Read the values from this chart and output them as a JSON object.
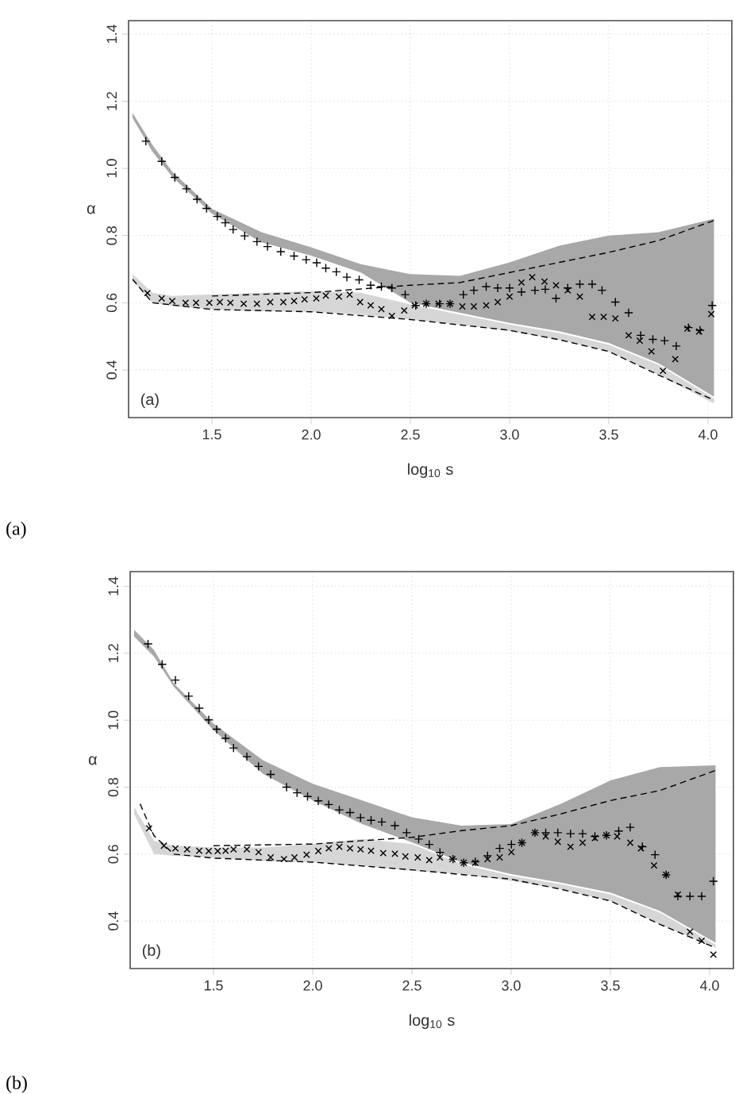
{
  "chart_data": [
    {
      "type": "scatter",
      "xlabel": "log$_{10}$ s",
      "ylabel": "α",
      "xlim": [
        1.08,
        4.12
      ],
      "ylim": [
        0.258,
        1.44
      ],
      "grid": true,
      "xticks": [
        1.5,
        {
          "value": 2.0,
          "label": "2.0"
        },
        2.5,
        {
          "value": 3.0,
          "label": "3.0"
        },
        3.5,
        {
          "value": 4.0,
          "label": "4.0"
        }
      ],
      "yticks": [
        0.4,
        0.6,
        0.8,
        {
          "value": 1.0,
          "label": "1.0"
        },
        1.2,
        1.4
      ],
      "annotations": [
        "(a)",
        "(a)"
      ],
      "series": [
        {
          "type": "area",
          "color": "#a8a8a8",
          "x": [
            1.1,
            1.2,
            1.3,
            1.5,
            1.75,
            2.0,
            2.25,
            2.5,
            2.75,
            3.0,
            3.25,
            3.5,
            3.75,
            4.03
          ],
          "values": [
            null,
            null,
            null,
            null,
            null,
            null,
            null,
            null,
            null,
            null,
            null,
            null,
            null,
            null
          ],
          "upper": [
            1.165,
            1.07,
            0.99,
            0.88,
            0.81,
            0.765,
            0.715,
            0.685,
            0.68,
            0.72,
            0.77,
            0.8,
            0.81,
            0.85
          ],
          "lower": [
            1.15,
            1.05,
            0.975,
            0.865,
            0.78,
            0.74,
            0.69,
            0.6,
            0.57,
            0.54,
            0.515,
            0.48,
            0.42,
            0.32
          ]
        },
        {
          "type": "area",
          "color": "#d6d6d6",
          "x": [
            1.1,
            1.2,
            1.3,
            1.5,
            1.75,
            2.0,
            2.25,
            2.5,
            2.75,
            3.0,
            3.25,
            3.5,
            3.75,
            4.03
          ],
          "values": [
            null,
            null,
            null,
            null,
            null,
            null,
            null,
            null,
            null,
            null,
            null,
            null,
            null,
            null
          ],
          "upper": [
            0.685,
            0.63,
            0.62,
            0.625,
            0.63,
            0.635,
            0.63,
            0.595,
            0.565,
            0.535,
            0.51,
            0.475,
            0.415,
            0.315
          ],
          "lower": [
            0.665,
            0.6,
            0.59,
            0.58,
            0.575,
            0.573,
            0.565,
            0.55,
            0.535,
            0.515,
            0.49,
            0.455,
            0.385,
            0.3
          ]
        },
        {
          "type": "line",
          "line_style": "dashed",
          "color": "#000000",
          "x": [
            1.5,
            2.0,
            2.5,
            2.75,
            3.0,
            3.25,
            3.5,
            3.75,
            4.03
          ],
          "values": [
            0.62,
            0.63,
            0.652,
            0.66,
            0.69,
            0.72,
            0.75,
            0.785,
            0.845
          ]
        },
        {
          "type": "line",
          "line_style": "dashed",
          "color": "#000000",
          "x": [
            1.1,
            1.2,
            1.5,
            2.0,
            2.5,
            3.0,
            3.25,
            3.5,
            3.75,
            4.03
          ],
          "values": [
            0.67,
            0.6,
            0.58,
            0.573,
            0.55,
            0.518,
            0.49,
            0.455,
            0.385,
            0.31
          ]
        },
        {
          "type": "scatter",
          "marker": "plus",
          "color": "#000000",
          "x": [
            1.167,
            1.247,
            1.313,
            1.372,
            1.425,
            1.473,
            1.527,
            1.567,
            1.607,
            1.665,
            1.727,
            1.78,
            1.847,
            1.914,
            1.975,
            2.028,
            2.074,
            2.127,
            2.18,
            2.242,
            2.3,
            2.354,
            2.407,
            2.474,
            2.527,
            2.58,
            2.647,
            2.7,
            2.767,
            2.82,
            2.882,
            2.94,
            3.0,
            3.06,
            3.128,
            3.18,
            3.234,
            3.293,
            3.354,
            3.416,
            3.466,
            3.533,
            3.6,
            3.661,
            3.722,
            3.781,
            3.84,
            3.901,
            3.96,
            4.021
          ],
          "values": [
            1.081,
            1.021,
            0.973,
            0.939,
            0.908,
            0.881,
            0.857,
            0.838,
            0.818,
            0.799,
            0.782,
            0.767,
            0.752,
            0.739,
            0.728,
            0.719,
            0.703,
            0.692,
            0.676,
            0.668,
            0.652,
            0.648,
            0.644,
            0.624,
            0.592,
            0.597,
            0.597,
            0.597,
            0.624,
            0.637,
            0.648,
            0.644,
            0.644,
            0.632,
            0.637,
            0.64,
            0.613,
            0.644,
            0.655,
            0.655,
            0.637,
            0.602,
            0.57,
            0.503,
            0.491,
            0.487,
            0.471,
            0.526,
            0.518,
            0.592
          ]
        },
        {
          "type": "scatter",
          "marker": "cross",
          "color": "#000000",
          "x": [
            1.175,
            1.247,
            1.3,
            1.367,
            1.42,
            1.487,
            1.54,
            1.593,
            1.66,
            1.727,
            1.794,
            1.86,
            1.914,
            1.967,
            2.026,
            2.074,
            2.14,
            2.194,
            2.247,
            2.3,
            2.354,
            2.407,
            2.469,
            2.522,
            2.58,
            2.642,
            2.7,
            2.762,
            2.82,
            2.882,
            2.94,
            3.0,
            3.06,
            3.114,
            3.176,
            3.234,
            3.293,
            3.354,
            3.416,
            3.474,
            3.533,
            3.6,
            3.656,
            3.715,
            3.773,
            3.835,
            3.896,
            3.955,
            4.016
          ],
          "values": [
            0.629,
            0.613,
            0.605,
            0.6,
            0.6,
            0.6,
            0.602,
            0.6,
            0.597,
            0.597,
            0.602,
            0.602,
            0.605,
            0.61,
            0.613,
            0.621,
            0.618,
            0.624,
            0.602,
            0.592,
            0.581,
            0.561,
            0.577,
            0.592,
            0.597,
            0.597,
            0.597,
            0.589,
            0.589,
            0.592,
            0.602,
            0.618,
            0.66,
            0.676,
            0.663,
            0.652,
            0.637,
            0.618,
            0.558,
            0.558,
            0.553,
            0.503,
            0.487,
            0.455,
            0.397,
            0.432,
            0.523,
            0.514,
            0.566
          ]
        }
      ]
    },
    {
      "type": "scatter",
      "xlabel": "log$_{10}$ s",
      "ylabel": "α",
      "xlim": [
        1.08,
        4.12
      ],
      "ylim": [
        0.258,
        1.444
      ],
      "grid": true,
      "xticks": [
        1.5,
        {
          "value": 2.0,
          "label": "2.0"
        },
        2.5,
        {
          "value": 3.0,
          "label": "3.0"
        },
        3.5,
        {
          "value": 4.0,
          "label": "4.0"
        }
      ],
      "yticks": [
        0.4,
        0.6,
        0.8,
        {
          "value": 1.0,
          "label": "1.0"
        },
        1.2,
        1.4
      ],
      "annotations": [
        "(b)",
        "(b)"
      ],
      "series": [
        {
          "type": "area",
          "color": "#a8a8a8",
          "x": [
            1.1,
            1.2,
            1.3,
            1.5,
            1.75,
            2.0,
            2.25,
            2.5,
            2.75,
            3.0,
            3.25,
            3.5,
            3.75,
            4.03
          ],
          "values": [
            null,
            null,
            null,
            null,
            null,
            null,
            null,
            null,
            null,
            null,
            null,
            null,
            null,
            null
          ],
          "upper": [
            1.27,
            1.21,
            1.11,
            0.99,
            0.88,
            0.81,
            0.76,
            0.71,
            0.685,
            0.69,
            0.75,
            0.82,
            0.86,
            0.865
          ],
          "lower": [
            1.25,
            1.19,
            1.1,
            0.97,
            0.84,
            0.76,
            0.69,
            0.635,
            0.575,
            0.54,
            0.515,
            0.485,
            0.43,
            0.335
          ]
        },
        {
          "type": "area",
          "color": "#d6d6d6",
          "x": [
            1.1,
            1.2,
            1.3,
            1.5,
            1.75,
            2.0,
            2.25,
            2.5,
            2.75,
            3.0,
            3.25,
            3.5,
            3.75,
            4.03
          ],
          "values": [
            null,
            null,
            null,
            null,
            null,
            null,
            null,
            null,
            null,
            null,
            null,
            null,
            null,
            null
          ],
          "upper": [
            0.74,
            0.64,
            0.625,
            0.62,
            0.62,
            0.63,
            0.645,
            0.63,
            0.57,
            0.535,
            0.51,
            0.48,
            0.425,
            0.33
          ],
          "lower": [
            0.72,
            0.6,
            0.595,
            0.59,
            0.58,
            0.575,
            0.565,
            0.55,
            0.54,
            0.52,
            0.495,
            0.46,
            0.39,
            0.32
          ]
        },
        {
          "type": "line",
          "line_style": "dashed",
          "color": "#000000",
          "x": [
            1.5,
            2.0,
            2.5,
            2.75,
            3.0,
            3.25,
            3.5,
            3.75,
            4.03
          ],
          "values": [
            0.625,
            0.63,
            0.65,
            0.67,
            0.685,
            0.72,
            0.76,
            0.79,
            0.85
          ]
        },
        {
          "type": "line",
          "line_style": "dashed",
          "color": "#000000",
          "x": [
            1.13,
            1.2,
            1.3,
            1.5,
            2.0,
            2.5,
            3.0,
            3.25,
            3.5,
            3.75,
            4.03
          ],
          "values": [
            0.75,
            0.655,
            0.6,
            0.588,
            0.576,
            0.553,
            0.525,
            0.495,
            0.46,
            0.39,
            0.32
          ]
        },
        {
          "type": "scatter",
          "marker": "plus",
          "color": "#000000",
          "x": [
            1.17,
            1.241,
            1.308,
            1.375,
            1.428,
            1.476,
            1.516,
            1.561,
            1.601,
            1.668,
            1.727,
            1.788,
            1.868,
            1.921,
            1.974,
            2.028,
            2.081,
            2.134,
            2.188,
            2.241,
            2.294,
            2.348,
            2.414,
            2.473,
            2.534,
            2.587,
            2.641,
            2.707,
            2.761,
            2.819,
            2.881,
            2.942,
            3.001,
            3.054,
            3.12,
            3.174,
            3.235,
            3.299,
            3.36,
            3.422,
            3.48,
            3.542,
            3.6,
            3.661,
            3.725,
            3.781,
            3.84,
            3.901,
            3.96,
            4.019
          ],
          "values": [
            1.228,
            1.167,
            1.12,
            1.072,
            1.036,
            1.001,
            0.973,
            0.946,
            0.917,
            0.891,
            0.862,
            0.838,
            0.8,
            0.783,
            0.772,
            0.759,
            0.748,
            0.732,
            0.724,
            0.709,
            0.701,
            0.696,
            0.685,
            0.664,
            0.645,
            0.629,
            0.605,
            0.585,
            0.574,
            0.577,
            0.595,
            0.617,
            0.629,
            0.634,
            0.664,
            0.664,
            0.664,
            0.661,
            0.661,
            0.653,
            0.656,
            0.669,
            0.68,
            0.622,
            0.598,
            0.538,
            0.474,
            0.474,
            0.474,
            0.519
          ]
        },
        {
          "type": "scatter",
          "marker": "cross",
          "color": "#000000",
          "x": [
            1.175,
            1.25,
            1.308,
            1.367,
            1.428,
            1.476,
            1.521,
            1.561,
            1.601,
            1.668,
            1.727,
            1.788,
            1.855,
            1.908,
            1.969,
            2.028,
            2.081,
            2.134,
            2.188,
            2.241,
            2.294,
            2.355,
            2.414,
            2.467,
            2.529,
            2.587,
            2.641,
            2.704,
            2.761,
            2.819,
            2.881,
            2.942,
            3.001,
            3.054,
            3.12,
            3.174,
            3.235,
            3.299,
            3.36,
            3.422,
            3.48,
            3.534,
            3.6,
            3.654,
            3.72,
            3.781,
            3.84,
            3.901,
            3.96,
            4.019
          ],
          "values": [
            0.677,
            0.625,
            0.617,
            0.614,
            0.61,
            0.609,
            0.609,
            0.61,
            0.614,
            0.614,
            0.606,
            0.59,
            0.585,
            0.59,
            0.598,
            0.609,
            0.617,
            0.622,
            0.617,
            0.614,
            0.61,
            0.603,
            0.601,
            0.593,
            0.59,
            0.582,
            0.59,
            0.585,
            0.574,
            0.574,
            0.585,
            0.59,
            0.606,
            0.634,
            0.664,
            0.653,
            0.637,
            0.622,
            0.634,
            0.648,
            0.656,
            0.653,
            0.634,
            0.617,
            0.566,
            0.538,
            0.479,
            0.368,
            0.341,
            0.3
          ]
        }
      ]
    }
  ]
}
